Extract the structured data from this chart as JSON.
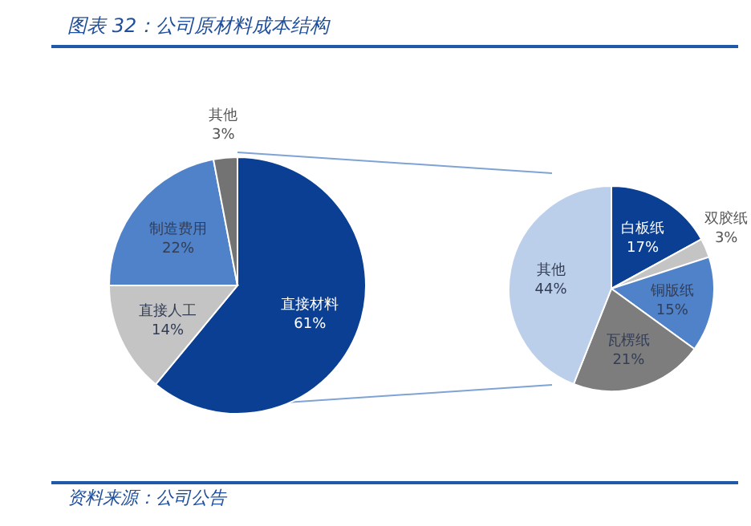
{
  "chart_data": [
    {
      "type": "pie",
      "title": "图表 32：公司原材料成本结构",
      "annotations": [
        "资料来源：公司公告"
      ],
      "categories": [
        "直接材料",
        "直接人工",
        "制造费用",
        "其他"
      ],
      "values": [
        61,
        14,
        22,
        3
      ],
      "value_labels": [
        "61%",
        "14%",
        "22%",
        "3%"
      ],
      "colors": [
        "#0a3f93",
        "#c4c4c4",
        "#4f82c9",
        "#737373"
      ]
    },
    {
      "type": "pie",
      "categories": [
        "白板纸",
        "双胶纸",
        "铜版纸",
        "瓦楞纸",
        "其他"
      ],
      "values": [
        17,
        3,
        15,
        21,
        44
      ],
      "value_labels": [
        "17%",
        "3%",
        "15%",
        "21%",
        "44%"
      ],
      "colors": [
        "#0a3f93",
        "#c4c4c4",
        "#4f82c9",
        "#7d7d7d",
        "#bccfea"
      ]
    }
  ]
}
